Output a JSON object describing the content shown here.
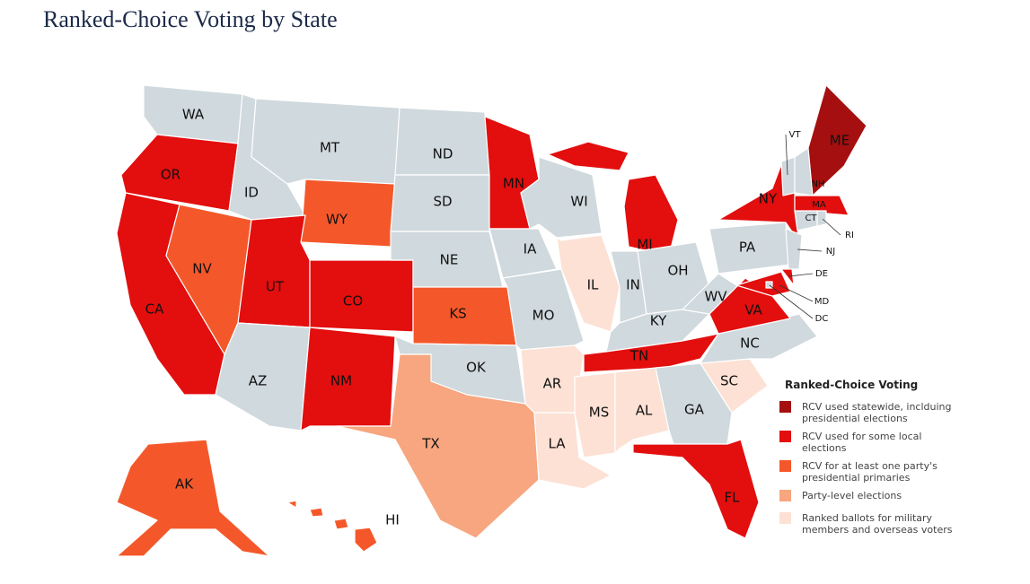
{
  "title": "Ranked-Choice Voting by State",
  "legend": {
    "title": "Ranked-Choice Voting",
    "items": [
      {
        "lines": [
          "RCV used statewide, inclduing",
          "presidential elections"
        ],
        "color": "#a50f0f"
      },
      {
        "lines": [
          "RCV used for some local",
          "elections"
        ],
        "color": "#e30e0e"
      },
      {
        "lines": [
          "RCV for at least one party's",
          "presidential primaries"
        ],
        "color": "#f4582a"
      },
      {
        "lines": [
          "Party-level elections"
        ],
        "color": "#f7a67f"
      },
      {
        "lines": [
          "Ranked ballots for military",
          "members and overseas voters"
        ],
        "color": "#fde1d5"
      }
    ]
  },
  "states": [
    {
      "label": "WA",
      "color": "#d0d9dd"
    },
    {
      "label": "OR",
      "color": "#e30e0e"
    },
    {
      "label": "CA",
      "color": "#e30e0e"
    },
    {
      "label": "NV",
      "color": "#f4582a"
    },
    {
      "label": "ID",
      "color": "#d0d9dd"
    },
    {
      "label": "MT",
      "color": "#d0d9dd"
    },
    {
      "label": "WY",
      "color": "#f4582a"
    },
    {
      "label": "UT",
      "color": "#e30e0e"
    },
    {
      "label": "CO",
      "color": "#e30e0e"
    },
    {
      "label": "AZ",
      "color": "#d0d9dd"
    },
    {
      "label": "NM",
      "color": "#e30e0e"
    },
    {
      "label": "ND",
      "color": "#d0d9dd"
    },
    {
      "label": "SD",
      "color": "#d0d9dd"
    },
    {
      "label": "NE",
      "color": "#d0d9dd"
    },
    {
      "label": "KS",
      "color": "#f4582a"
    },
    {
      "label": "OK",
      "color": "#d0d9dd"
    },
    {
      "label": "TX",
      "color": "#f7a67f"
    },
    {
      "label": "MN",
      "color": "#e30e0e"
    },
    {
      "label": "IA",
      "color": "#d0d9dd"
    },
    {
      "label": "MO",
      "color": "#d0d9dd"
    },
    {
      "label": "AR",
      "color": "#fde1d5"
    },
    {
      "label": "LA",
      "color": "#fde1d5"
    },
    {
      "label": "WI",
      "color": "#d0d9dd"
    },
    {
      "label": "IL",
      "color": "#fde1d5"
    },
    {
      "label": "MI",
      "color": "#e30e0e"
    },
    {
      "label": "IN",
      "color": "#d0d9dd"
    },
    {
      "label": "OH",
      "color": "#d0d9dd"
    },
    {
      "label": "KY",
      "color": "#d0d9dd"
    },
    {
      "label": "TN",
      "color": "#e30e0e"
    },
    {
      "label": "MS",
      "color": "#fde1d5"
    },
    {
      "label": "AL",
      "color": "#fde1d5"
    },
    {
      "label": "GA",
      "color": "#d0d9dd"
    },
    {
      "label": "FL",
      "color": "#e30e0e"
    },
    {
      "label": "SC",
      "color": "#fde1d5"
    },
    {
      "label": "NC",
      "color": "#d0d9dd"
    },
    {
      "label": "VA",
      "color": "#e30e0e"
    },
    {
      "label": "WV",
      "color": "#d0d9dd"
    },
    {
      "label": "PA",
      "color": "#d0d9dd"
    },
    {
      "label": "NY",
      "color": "#e30e0e"
    },
    {
      "label": "VT",
      "color": "#d0d9dd"
    },
    {
      "label": "NH",
      "color": "#d0d9dd"
    },
    {
      "label": "ME",
      "color": "#a50f0f"
    },
    {
      "label": "MA",
      "color": "#e30e0e"
    },
    {
      "label": "CT",
      "color": "#d0d9dd"
    },
    {
      "label": "RI",
      "color": "#d0d9dd"
    },
    {
      "label": "NJ",
      "color": "#d0d9dd"
    },
    {
      "label": "DE",
      "color": "#e30e0e"
    },
    {
      "label": "MD",
      "color": "#e30e0e"
    },
    {
      "label": "DC",
      "color": "#d0d9dd"
    },
    {
      "label": "AK",
      "color": "#f4582a"
    },
    {
      "label": "HI",
      "color": "#f4582a"
    }
  ]
}
